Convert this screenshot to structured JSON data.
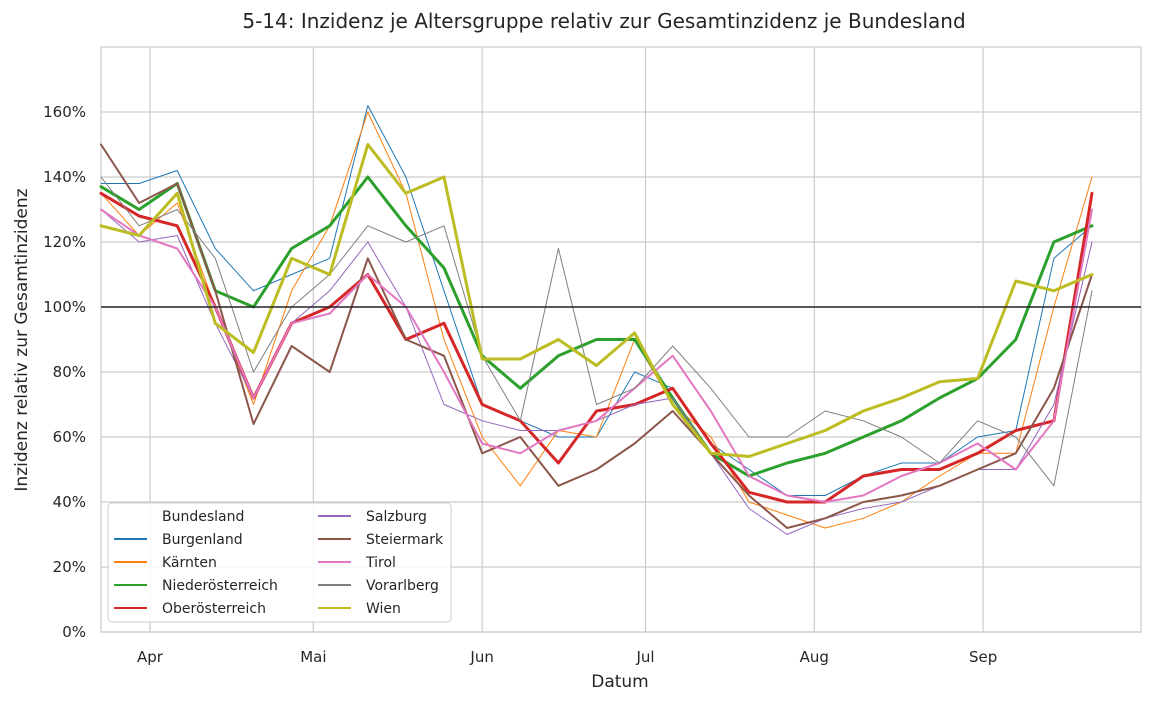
{
  "chart_data": {
    "type": "line",
    "title": "5-14: Inzidenz je Altersgruppe relativ zur Gesamtinzidenz je Bundesland",
    "xlabel": "Datum",
    "ylabel": "Inzidenz relativ zur Gesamtinzidenz",
    "x_tick_labels": [
      "Apr",
      "Mai",
      "Jun",
      "Jul",
      "Aug",
      "Sep"
    ],
    "y_tick_labels": [
      "0%",
      "20%",
      "40%",
      "60%",
      "80%",
      "100%",
      "120%",
      "140%",
      "160%"
    ],
    "ylim": [
      0,
      1.8
    ],
    "reference_line": 1.0,
    "grid": true,
    "legend_title": "Bundesland",
    "legend_position": "lower-left",
    "x": [
      "2021-03-23",
      "2021-03-30",
      "2021-04-06",
      "2021-04-13",
      "2021-04-20",
      "2021-04-27",
      "2021-05-04",
      "2021-05-11",
      "2021-05-18",
      "2021-05-25",
      "2021-06-01",
      "2021-06-08",
      "2021-06-15",
      "2021-06-22",
      "2021-06-29",
      "2021-07-06",
      "2021-07-13",
      "2021-07-20",
      "2021-07-27",
      "2021-08-03",
      "2021-08-10",
      "2021-08-17",
      "2021-08-24",
      "2021-08-31",
      "2021-09-07",
      "2021-09-14",
      "2021-09-21"
    ],
    "series": [
      {
        "name": "Burgenland",
        "color": "#1f77b4",
        "width": 1,
        "values": [
          1.38,
          1.38,
          1.42,
          1.18,
          1.05,
          1.1,
          1.15,
          1.62,
          1.4,
          1.05,
          0.7,
          0.65,
          0.6,
          0.6,
          0.8,
          0.75,
          0.58,
          0.5,
          0.42,
          0.42,
          0.48,
          0.52,
          0.52,
          0.6,
          0.62,
          1.15,
          1.25
        ]
      },
      {
        "name": "Kärnten",
        "color": "#ff7f0e",
        "width": 1,
        "values": [
          1.35,
          1.22,
          1.32,
          1.0,
          0.7,
          1.05,
          1.25,
          1.6,
          1.35,
          0.9,
          0.6,
          0.45,
          0.62,
          0.6,
          0.9,
          0.7,
          0.6,
          0.4,
          0.36,
          0.32,
          0.35,
          0.4,
          0.48,
          0.55,
          0.55,
          1.0,
          1.4
        ]
      },
      {
        "name": "Niederösterreich",
        "color": "#2ca02c",
        "width": 3,
        "values": [
          1.37,
          1.3,
          1.38,
          1.05,
          1.0,
          1.18,
          1.25,
          1.4,
          1.25,
          1.12,
          0.85,
          0.75,
          0.85,
          0.9,
          0.9,
          0.72,
          0.55,
          0.48,
          0.52,
          0.55,
          0.6,
          0.65,
          0.72,
          0.78,
          0.9,
          1.2,
          1.25
        ]
      },
      {
        "name": "Oberösterreich",
        "color": "#d62728",
        "width": 3,
        "values": [
          1.35,
          1.28,
          1.25,
          1.0,
          0.72,
          0.95,
          1.0,
          1.1,
          0.9,
          0.95,
          0.7,
          0.65,
          0.52,
          0.68,
          0.7,
          0.75,
          0.58,
          0.43,
          0.4,
          0.4,
          0.48,
          0.5,
          0.5,
          0.55,
          0.62,
          0.65,
          1.35
        ]
      },
      {
        "name": "Salzburg",
        "color": "#9467bd",
        "width": 1,
        "values": [
          1.3,
          1.2,
          1.22,
          0.95,
          0.72,
          0.95,
          1.05,
          1.2,
          1.0,
          0.7,
          0.65,
          0.62,
          0.62,
          0.65,
          0.7,
          0.72,
          0.55,
          0.38,
          0.3,
          0.35,
          0.38,
          0.4,
          0.45,
          0.5,
          0.5,
          0.7,
          1.2
        ]
      },
      {
        "name": "Steiermark",
        "color": "#8c564b",
        "width": 2,
        "values": [
          1.5,
          1.32,
          1.38,
          1.05,
          0.64,
          0.88,
          0.8,
          1.15,
          0.9,
          0.85,
          0.55,
          0.6,
          0.45,
          0.5,
          0.58,
          0.68,
          0.55,
          0.42,
          0.32,
          0.35,
          0.4,
          0.42,
          0.45,
          0.5,
          0.55,
          0.75,
          1.1
        ]
      },
      {
        "name": "Tirol",
        "color": "#e377c2",
        "width": 2,
        "values": [
          1.3,
          1.22,
          1.18,
          1.0,
          0.72,
          0.95,
          0.98,
          1.1,
          1.0,
          0.8,
          0.58,
          0.55,
          0.62,
          0.65,
          0.75,
          0.85,
          0.68,
          0.48,
          0.42,
          0.4,
          0.42,
          0.48,
          0.52,
          0.58,
          0.5,
          0.65,
          1.3
        ]
      },
      {
        "name": "Vorarlberg",
        "color": "#7f7f7f",
        "width": 1,
        "values": [
          1.4,
          1.25,
          1.3,
          1.15,
          0.8,
          1.0,
          1.1,
          1.25,
          1.2,
          1.25,
          0.85,
          0.65,
          1.18,
          0.7,
          0.75,
          0.88,
          0.75,
          0.6,
          0.6,
          0.68,
          0.65,
          0.6,
          0.52,
          0.65,
          0.6,
          0.45,
          1.05
        ]
      },
      {
        "name": "Wien",
        "color": "#bcbd22",
        "width": 3,
        "values": [
          1.25,
          1.22,
          1.35,
          0.95,
          0.86,
          1.15,
          1.1,
          1.5,
          1.35,
          1.4,
          0.84,
          0.84,
          0.9,
          0.82,
          0.92,
          0.7,
          0.55,
          0.54,
          0.58,
          0.62,
          0.68,
          0.72,
          0.77,
          0.78,
          1.08,
          1.05,
          1.1
        ]
      }
    ]
  }
}
